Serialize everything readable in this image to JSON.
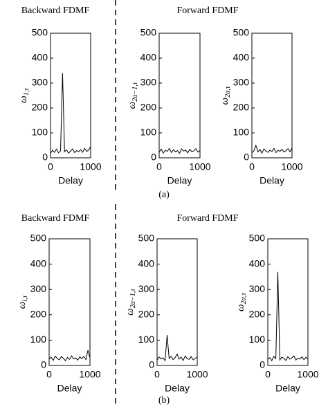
{
  "panels": [
    {
      "backward": "Backward FDMF",
      "forward": "Forward FDMF",
      "caption": "(a)"
    },
    {
      "backward": "Backward FDMF",
      "forward": "Forward FDMF",
      "caption": "(b)"
    }
  ],
  "chart_data": [
    {
      "type": "line",
      "ylabel": "ω",
      "ylabel_subscript": "1,τ",
      "xlabel": "Delay",
      "color": "#000000",
      "x": [
        0,
        50,
        100,
        150,
        200,
        250,
        300,
        350,
        400,
        450,
        500,
        550,
        600,
        650,
        700,
        750,
        800,
        850,
        900,
        950,
        1000
      ],
      "values": [
        18,
        30,
        22,
        35,
        20,
        28,
        340,
        25,
        32,
        19,
        27,
        36,
        21,
        29,
        24,
        33,
        22,
        38,
        26,
        31,
        45
      ],
      "xlim": [
        0,
        1000
      ],
      "ylim": [
        0,
        500
      ],
      "xticks": [
        0,
        1000
      ],
      "yticks": [
        0,
        100,
        200,
        300,
        400,
        500
      ]
    },
    {
      "type": "line",
      "ylabel": "ω",
      "ylabel_subscript": "2α−1,τ",
      "xlabel": "Delay",
      "color": "#000000",
      "x": [
        0,
        50,
        100,
        150,
        200,
        250,
        300,
        350,
        400,
        450,
        500,
        550,
        600,
        650,
        700,
        750,
        800,
        850,
        900,
        950,
        1000
      ],
      "values": [
        22,
        35,
        19,
        30,
        26,
        38,
        21,
        33,
        24,
        29,
        18,
        36,
        27,
        31,
        20,
        34,
        25,
        28,
        37,
        23,
        30
      ],
      "xlim": [
        0,
        1000
      ],
      "ylim": [
        0,
        500
      ],
      "xticks": [
        0,
        1000
      ],
      "yticks": [
        0,
        100,
        200,
        300,
        400,
        500
      ]
    },
    {
      "type": "line",
      "ylabel": "ω",
      "ylabel_subscript": "2α,τ",
      "xlabel": "Delay",
      "color": "#000000",
      "x": [
        0,
        50,
        100,
        150,
        200,
        250,
        300,
        350,
        400,
        450,
        500,
        550,
        600,
        650,
        700,
        750,
        800,
        850,
        900,
        950,
        1000
      ],
      "values": [
        20,
        28,
        50,
        24,
        33,
        19,
        36,
        27,
        22,
        31,
        25,
        38,
        21,
        30,
        26,
        34,
        23,
        29,
        37,
        24,
        40
      ],
      "xlim": [
        0,
        1000
      ],
      "ylim": [
        0,
        500
      ],
      "xticks": [
        0,
        1000
      ],
      "yticks": [
        0,
        100,
        200,
        300,
        400,
        500
      ]
    },
    {
      "type": "line",
      "ylabel": "ω",
      "ylabel_subscript": "i,τ",
      "xlabel": "Delay",
      "color": "#000000",
      "x": [
        0,
        50,
        100,
        150,
        200,
        250,
        300,
        350,
        400,
        450,
        500,
        550,
        600,
        650,
        700,
        750,
        800,
        850,
        900,
        950,
        1000
      ],
      "values": [
        25,
        33,
        20,
        37,
        27,
        22,
        35,
        28,
        19,
        32,
        24,
        38,
        26,
        30,
        21,
        34,
        27,
        36,
        23,
        60,
        30
      ],
      "xlim": [
        0,
        1000
      ],
      "ylim": [
        0,
        500
      ],
      "xticks": [
        0,
        1000
      ],
      "yticks": [
        0,
        100,
        200,
        300,
        400,
        500
      ]
    },
    {
      "type": "line",
      "ylabel": "ω",
      "ylabel_subscript": "2α−1,τ",
      "xlabel": "Delay",
      "color": "#000000",
      "x": [
        0,
        50,
        100,
        150,
        200,
        250,
        300,
        350,
        400,
        450,
        500,
        550,
        600,
        650,
        700,
        750,
        800,
        850,
        900,
        950,
        1000
      ],
      "values": [
        21,
        34,
        26,
        30,
        19,
        120,
        28,
        36,
        23,
        31,
        45,
        25,
        33,
        20,
        37,
        27,
        24,
        35,
        22,
        29,
        32
      ],
      "xlim": [
        0,
        1000
      ],
      "ylim": [
        0,
        500
      ],
      "xticks": [
        0,
        1000
      ],
      "yticks": [
        0,
        100,
        200,
        300,
        400,
        500
      ]
    },
    {
      "type": "line",
      "ylabel": "ω",
      "ylabel_subscript": "2α,τ",
      "xlabel": "Delay",
      "color": "#000000",
      "x": [
        0,
        50,
        100,
        150,
        200,
        250,
        300,
        350,
        400,
        450,
        500,
        550,
        600,
        650,
        700,
        750,
        800,
        850,
        900,
        950,
        1000
      ],
      "values": [
        24,
        31,
        19,
        36,
        27,
        370,
        22,
        33,
        28,
        20,
        35,
        25,
        30,
        38,
        21,
        29,
        26,
        34,
        23,
        32,
        27
      ],
      "xlim": [
        0,
        1000
      ],
      "ylim": [
        0,
        500
      ],
      "xticks": [
        0,
        1000
      ],
      "yticks": [
        0,
        100,
        200,
        300,
        400,
        500
      ]
    }
  ]
}
